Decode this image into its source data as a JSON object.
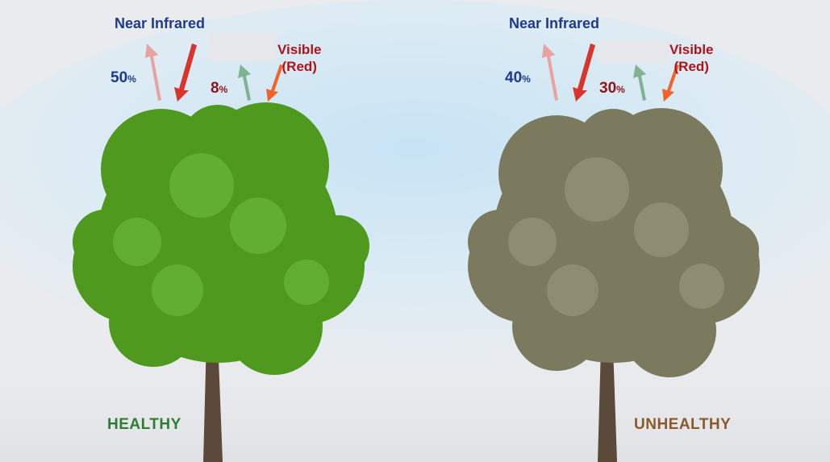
{
  "colors": {
    "healthy_label": "#2e7d32",
    "unhealthy_label": "#8b5a2b",
    "nir_text": "#1f3a8a",
    "visible_text": "#b01218",
    "healthy_canopy": "#4f9a1e",
    "unhealthy_canopy": "#7b7a5e",
    "trunk": "#5b4a3a",
    "arrow_incoming": "#d9342b",
    "arrow_nir_reflect": "#e8a3a0",
    "arrow_visible_reflect": "#7fb394",
    "arrow_visible_incoming": "#f0632b"
  },
  "panels": [
    {
      "id": "healthy",
      "nir_label": "Near Infrared",
      "nir_percent": "50",
      "visible_label_line1": "Visible",
      "visible_label_line2": "(Red)",
      "visible_percent": "8",
      "percent_symbol": "%",
      "status": "HEALTHY",
      "canopy_color": "#4f9a1e"
    },
    {
      "id": "unhealthy",
      "nir_label": "Near Infrared",
      "nir_percent": "40",
      "visible_label_line1": "Visible",
      "visible_label_line2": "(Red)",
      "visible_percent": "30",
      "percent_symbol": "%",
      "status": "UNHEALTHY",
      "canopy_color": "#7b7a5e"
    }
  ]
}
